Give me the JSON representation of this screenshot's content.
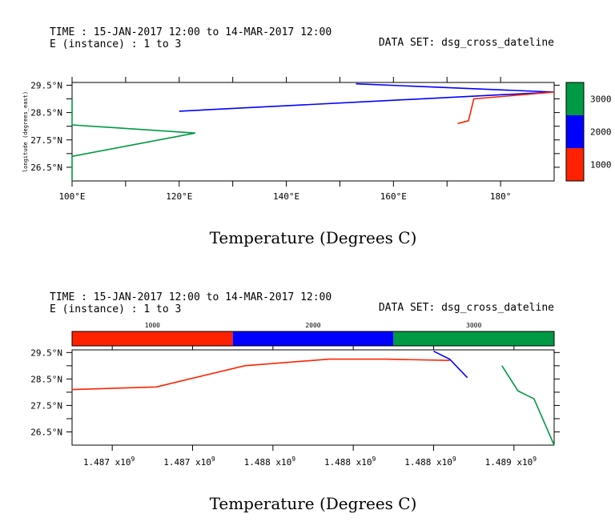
{
  "chart_data": [
    {
      "type": "line",
      "header": {
        "time_line": "TIME : 15-JAN-2017 12:00 to 14-MAR-2017 12:00",
        "instance_line": "E (instance) : 1 to 3",
        "dataset_line": "DATA SET: dsg_cross_dateline"
      },
      "title": "Temperature (Degrees C)",
      "xlabel": "",
      "ylabel": "longitude (degrees_east)",
      "xlim": [
        100,
        190
      ],
      "ylim": [
        26.0,
        29.6
      ],
      "x_ticks": [
        {
          "value": 100,
          "label": "100°E"
        },
        {
          "value": 120,
          "label": "120°E"
        },
        {
          "value": 140,
          "label": "140°E"
        },
        {
          "value": 160,
          "label": "160°E"
        },
        {
          "value": 180,
          "label": "180°"
        }
      ],
      "x_minor_ticks": [
        110,
        130,
        150,
        170
      ],
      "y_ticks": [
        {
          "value": 26.5,
          "label": "26.5°N"
        },
        {
          "value": 27.5,
          "label": "27.5°N"
        },
        {
          "value": 28.5,
          "label": "28.5°N"
        },
        {
          "value": 29.5,
          "label": "29.5°N"
        }
      ],
      "y_minor_ticks": [
        27.0,
        28.0,
        29.0
      ],
      "colorbar": {
        "orientation": "vertical",
        "levels": [
          {
            "label": "1000",
            "color": "#ff2200"
          },
          {
            "label": "2000",
            "color": "#0000ff"
          },
          {
            "label": "3000",
            "color": "#009944"
          }
        ]
      },
      "series": [
        {
          "color": "#009944",
          "points": [
            [
              100,
              26.0
            ],
            [
              100,
              26.9
            ],
            [
              123,
              27.75
            ],
            [
              100,
              28.05
            ],
            [
              100,
              29.0
            ]
          ]
        },
        {
          "color": "#0000ff",
          "points": [
            [
              120,
              28.55
            ],
            [
              190,
              29.25
            ],
            [
              153,
              29.55
            ]
          ]
        },
        {
          "color": "#ff2200",
          "points": [
            [
              172,
              28.1
            ],
            [
              174,
              28.2
            ],
            [
              175,
              29.0
            ],
            [
              190,
              29.25
            ]
          ]
        }
      ]
    },
    {
      "type": "line",
      "header": {
        "time_line": "TIME : 15-JAN-2017 12:00 to 14-MAR-2017 12:00",
        "instance_line": "E (instance) : 1 to 3",
        "dataset_line": "DATA SET: dsg_cross_dateline"
      },
      "title": "Temperature (Degrees C)",
      "xlabel": "",
      "ylabel": "",
      "xlim": [
        0,
        6
      ],
      "ylim": [
        26.0,
        29.6
      ],
      "x_ticks": [
        {
          "value": 0.5,
          "mantissa": "1.487 x10",
          "exponent": "9"
        },
        {
          "value": 1.5,
          "mantissa": "1.487 x10",
          "exponent": "9"
        },
        {
          "value": 2.5,
          "mantissa": "1.488 x10",
          "exponent": "9"
        },
        {
          "value": 3.5,
          "mantissa": "1.488 x10",
          "exponent": "9"
        },
        {
          "value": 4.5,
          "mantissa": "1.488 x10",
          "exponent": "9"
        },
        {
          "value": 5.5,
          "mantissa": "1.489 x10",
          "exponent": "9"
        }
      ],
      "y_ticks": [
        {
          "value": 26.5,
          "label": "26.5°N"
        },
        {
          "value": 27.5,
          "label": "27.5°N"
        },
        {
          "value": 28.5,
          "label": "28.5°N"
        },
        {
          "value": 29.5,
          "label": "29.5°N"
        }
      ],
      "y_minor_ticks": [
        27.0,
        28.0,
        29.0
      ],
      "colorbar": {
        "orientation": "horizontal",
        "levels": [
          {
            "label": "1000",
            "color": "#ff2200"
          },
          {
            "label": "2000",
            "color": "#0000ff"
          },
          {
            "label": "3000",
            "color": "#009944"
          }
        ]
      },
      "series": [
        {
          "color": "#ff2200",
          "points": [
            [
              0,
              28.1
            ],
            [
              1.05,
              28.2
            ],
            [
              2.15,
              29.0
            ],
            [
              3.2,
              29.25
            ],
            [
              3.9,
              29.25
            ],
            [
              4.7,
              29.2
            ]
          ]
        },
        {
          "color": "#0000ff",
          "points": [
            [
              4.5,
              29.55
            ],
            [
              4.7,
              29.25
            ],
            [
              4.92,
              28.55
            ]
          ]
        },
        {
          "color": "#009944",
          "points": [
            [
              5.35,
              29.0
            ],
            [
              5.55,
              28.05
            ],
            [
              5.75,
              27.75
            ],
            [
              6.0,
              26.0
            ]
          ]
        }
      ]
    }
  ]
}
